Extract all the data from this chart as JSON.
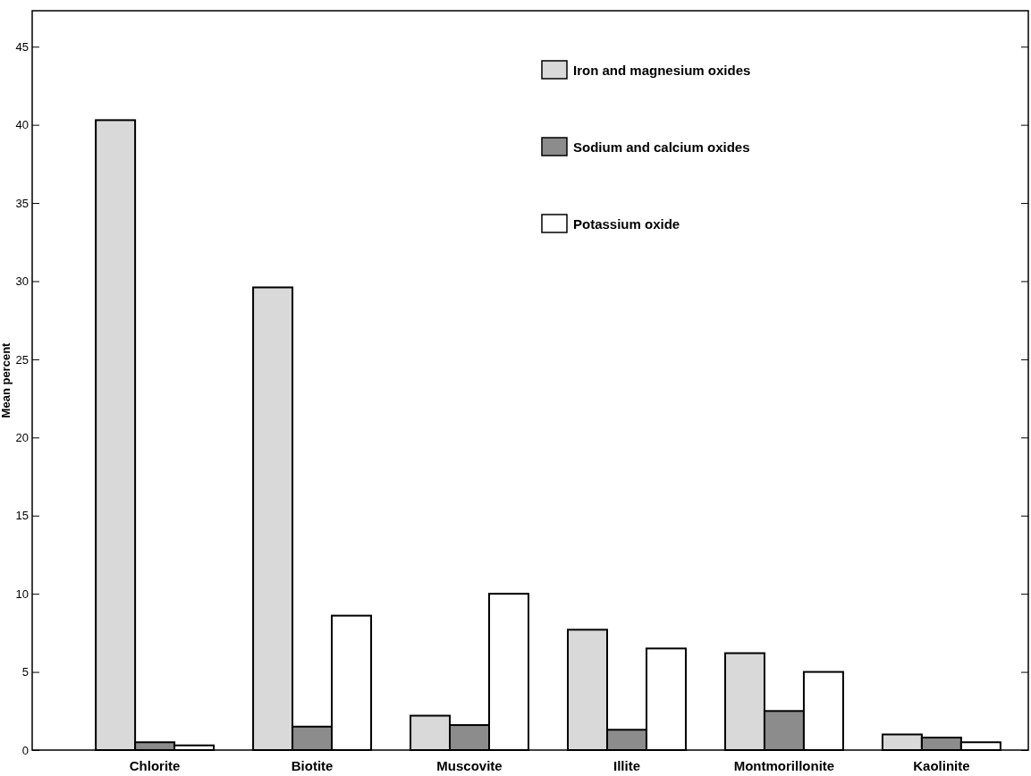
{
  "chart_data": {
    "type": "bar",
    "ylabel": "Mean percent",
    "categories": [
      "Chlorite",
      "Biotite",
      "Muscovite",
      "Illite",
      "Montmorillonite",
      "Kaolinite"
    ],
    "series": [
      {
        "name": "Iron and magnesium oxides",
        "color": "#d9d9d9",
        "values": [
          40.3,
          29.6,
          2.2,
          7.7,
          6.2,
          1.0
        ]
      },
      {
        "name": "Sodium and calcium oxides",
        "color": "#8c8c8c",
        "values": [
          0.5,
          1.5,
          1.6,
          1.3,
          2.5,
          0.8
        ]
      },
      {
        "name": "Potassium oxide",
        "color": "#ffffff",
        "values": [
          0.3,
          8.6,
          10.0,
          6.5,
          5.0,
          0.5
        ]
      }
    ],
    "ylim": [
      0,
      47.3
    ],
    "yticks": [
      0,
      5,
      10,
      15,
      20,
      25,
      30,
      35,
      40,
      45
    ],
    "grid": false,
    "legend": "top right"
  }
}
